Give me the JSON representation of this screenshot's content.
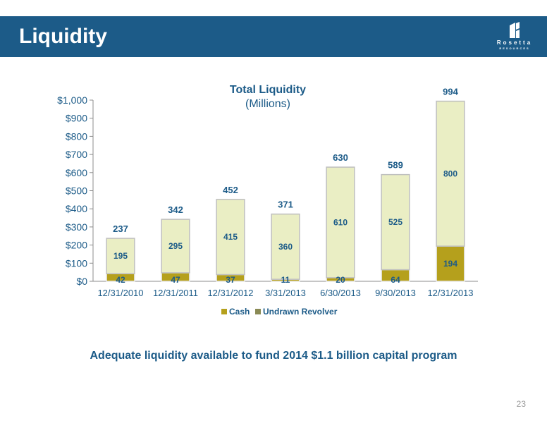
{
  "header": {
    "title": "Liquidity",
    "logo": {
      "name": "Rosetta",
      "sub": "RESOURCES",
      "icon": "rosetta-logo-icon"
    }
  },
  "chart_data": {
    "type": "bar",
    "stacked": true,
    "title": "Total Liquidity",
    "subtitle": "(Millions)",
    "xlabel": "",
    "ylabel": "",
    "ylim": [
      0,
      1000
    ],
    "yticks": [
      "$0",
      "$100",
      "$200",
      "$300",
      "$400",
      "$500",
      "$600",
      "$700",
      "$800",
      "$900",
      "$1,000"
    ],
    "categories": [
      "12/31/2010",
      "12/31/2011",
      "12/31/2012",
      "3/31/2013",
      "6/30/2013",
      "9/30/2013",
      "12/31/2013"
    ],
    "series": [
      {
        "name": "Cash",
        "values": [
          42,
          47,
          37,
          11,
          20,
          64,
          194
        ],
        "color": "#b5a01c"
      },
      {
        "name": "Undrawn Revolver",
        "values": [
          195,
          295,
          415,
          360,
          610,
          525,
          800
        ],
        "color": "#eaeec4"
      }
    ],
    "totals": [
      237,
      342,
      452,
      371,
      630,
      589,
      994
    ],
    "legend": "bottom",
    "grid": false
  },
  "footer": {
    "text": "Adequate liquidity available to fund 2014 $1.1 billion capital program",
    "page_number": "23"
  }
}
